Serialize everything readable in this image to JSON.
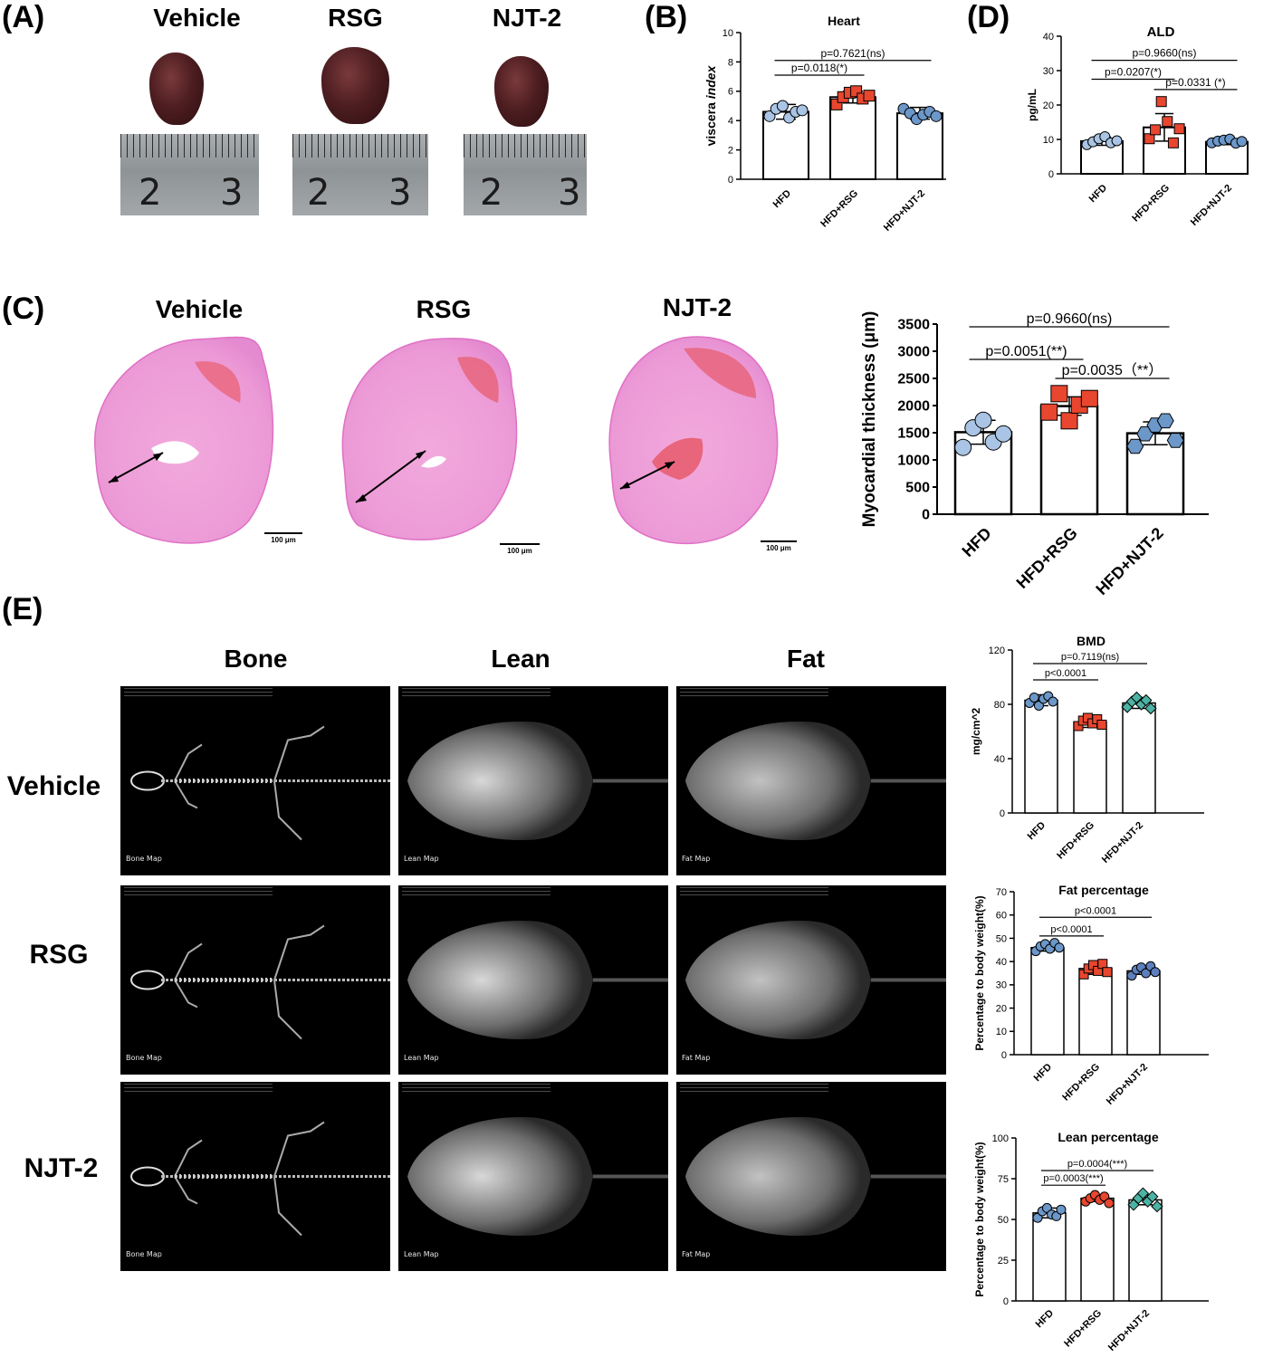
{
  "panels": {
    "A": "(A)",
    "B": "(B)",
    "C": "(C)",
    "D": "(D)",
    "E": "(E)"
  },
  "groups_photo": [
    "Vehicle",
    "RSG",
    "NJT-2"
  ],
  "ruler_numbers": [
    "2",
    "3"
  ],
  "scale_bar": "100 μm",
  "dexa_columns": [
    "Bone",
    "Lean",
    "Fat"
  ],
  "dexa_rows": [
    "Vehicle",
    "RSG",
    "NJT-2"
  ],
  "dexa_map_labels": [
    "Bone Map",
    "Lean Map",
    "Fat Map"
  ],
  "colors": {
    "hfd": "#a9c4e4",
    "rsg": "#e8462f",
    "njt": "#6c97c9",
    "teal": "#4cb3a4"
  },
  "chart_data": [
    {
      "id": "heart",
      "type": "bar",
      "title": "Heart",
      "ylabel": "viscera index",
      "ylim": [
        0,
        10
      ],
      "yticks": [
        0,
        2,
        4,
        6,
        8,
        10
      ],
      "categories": [
        "HFD",
        "HFD+RSG",
        "HFD+NJT-2"
      ],
      "values": [
        4.6,
        5.6,
        4.5
      ],
      "err": [
        0.5,
        0.4,
        0.4
      ],
      "points": [
        [
          4.3,
          4.8,
          5.0,
          4.2,
          4.6,
          4.7
        ],
        [
          5.1,
          5.6,
          5.9,
          6.0,
          5.5,
          5.7
        ],
        [
          4.8,
          4.5,
          4.1,
          4.4,
          4.6,
          4.3
        ]
      ],
      "markers": [
        "circle",
        "square",
        "circle"
      ],
      "colors": [
        "#a9c4e4",
        "#e8462f",
        "#6c97c9"
      ],
      "brackets": [
        {
          "from": 0,
          "to": 1,
          "y": 7.1,
          "text": "p=0.0118(*)"
        },
        {
          "from": 0,
          "to": 2,
          "y": 8.1,
          "text": "p=0.7621(ns)"
        }
      ]
    },
    {
      "id": "ald",
      "type": "bar",
      "title": "ALD",
      "ylabel": "pg/mL",
      "ylim": [
        0,
        40
      ],
      "yticks": [
        0,
        10,
        20,
        30,
        40
      ],
      "categories": [
        "HFD",
        "HFD+RSG",
        "HFD+NJT-2"
      ],
      "values": [
        9.5,
        13.5,
        9.3
      ],
      "err": [
        1.2,
        4.0,
        0.8
      ],
      "points": [
        [
          8.5,
          9.3,
          10.2,
          10.8,
          9.0,
          9.6
        ],
        [
          10.2,
          12.8,
          21.0,
          15.2,
          9.0,
          13.1
        ],
        [
          9.0,
          9.5,
          9.8,
          10.1,
          8.9,
          9.4
        ]
      ],
      "markers": [
        "circle",
        "square",
        "circle"
      ],
      "colors": [
        "#a9c4e4",
        "#e8462f",
        "#6c97c9"
      ],
      "brackets": [
        {
          "from": 1,
          "to": 2,
          "y": 24.5,
          "text": "p=0.0331 (*)"
        },
        {
          "from": 0,
          "to": 1,
          "y": 27.5,
          "text": "p=0.0207(*)"
        },
        {
          "from": 0,
          "to": 2,
          "y": 33.0,
          "text": "p=0.9660(ns)"
        }
      ]
    },
    {
      "id": "myo",
      "type": "bar",
      "title": "",
      "ylabel": "Myocardial thickness (μm)",
      "ylim": [
        0,
        3500
      ],
      "yticks": [
        0,
        500,
        1000,
        1500,
        2000,
        2500,
        3000,
        3500
      ],
      "categories": [
        "HFD",
        "HFD+RSG",
        "HFD+NJT-2"
      ],
      "values": [
        1510,
        1990,
        1490
      ],
      "err": [
        220,
        170,
        210
      ],
      "points": [
        [
          1230,
          1590,
          1730,
          1330,
          1480
        ],
        [
          1880,
          2220,
          1720,
          2010,
          2130
        ],
        [
          1250,
          1480,
          1640,
          1720,
          1360
        ]
      ],
      "markers": [
        "circle",
        "square",
        "hexagon"
      ],
      "colors": [
        "#a9c4e4",
        "#e8462f",
        "#6c97c9"
      ],
      "brackets": [
        {
          "from": 1,
          "to": 2,
          "y": 2500,
          "text": "p=0.0035（**）"
        },
        {
          "from": 0,
          "to": 1,
          "y": 2850,
          "text": "p=0.0051(**)"
        },
        {
          "from": 0,
          "to": 2,
          "y": 3450,
          "text": "p=0.9660(ns)"
        }
      ]
    },
    {
      "id": "bmd",
      "type": "bar",
      "title": "BMD",
      "ylabel": "mg/cm^2",
      "ylim": [
        0,
        120
      ],
      "yticks": [
        0,
        40,
        80,
        120
      ],
      "categories": [
        "HFD",
        "HFD+RSG",
        "HFD+NJT-2"
      ],
      "values": [
        83,
        67,
        81
      ],
      "err": [
        4,
        4,
        4
      ],
      "points": [
        [
          81,
          85,
          79,
          84,
          86,
          82
        ],
        [
          64,
          68,
          70,
          66,
          69,
          65
        ],
        [
          78,
          82,
          85,
          80,
          83,
          77
        ]
      ],
      "markers": [
        "circle",
        "square",
        "diamond"
      ],
      "colors": [
        "#6c97c9",
        "#e8462f",
        "#4cb3a4"
      ],
      "brackets": [
        {
          "from": 0,
          "to": 1,
          "y": 98,
          "text": "p<0.0001"
        },
        {
          "from": 0,
          "to": 2,
          "y": 110,
          "text": "p=0.7119(ns)"
        }
      ]
    },
    {
      "id": "fat",
      "type": "bar",
      "title": "Fat percentage",
      "ylabel": "Percentage to body weight(%)",
      "ylim": [
        0,
        70
      ],
      "yticks": [
        0,
        10,
        20,
        30,
        40,
        50,
        60,
        70
      ],
      "categories": [
        "HFD",
        "HFD+RSG",
        "HFD+NJT-2"
      ],
      "values": [
        46,
        37,
        36
      ],
      "err": [
        1.5,
        2.5,
        1.5
      ],
      "points": [
        [
          44.5,
          46.5,
          47.5,
          45.5,
          48,
          46
        ],
        [
          34.5,
          37,
          38.5,
          36,
          39,
          35.5
        ],
        [
          34,
          36.5,
          37.5,
          35,
          38,
          35.5
        ]
      ],
      "markers": [
        "circle",
        "square",
        "circle"
      ],
      "colors": [
        "#6c97c9",
        "#e8462f",
        "#5e7fbe"
      ],
      "brackets": [
        {
          "from": 0,
          "to": 1,
          "y": 51,
          "text": "p<0.0001"
        },
        {
          "from": 0,
          "to": 2,
          "y": 59,
          "text": "p<0.0001"
        }
      ]
    },
    {
      "id": "lean",
      "type": "bar",
      "title": "Lean percentage",
      "ylabel": "Percentage to body weight(%)",
      "ylim": [
        0,
        100
      ],
      "yticks": [
        0,
        25,
        50,
        75,
        100
      ],
      "categories": [
        "HFD",
        "HFD+RSG",
        "HFD+NJT-2"
      ],
      "values": [
        54,
        63,
        62
      ],
      "err": [
        3,
        2,
        3
      ],
      "points": [
        [
          51,
          55,
          57,
          53,
          52,
          56
        ],
        [
          61,
          63,
          65,
          62,
          64,
          60
        ],
        [
          59,
          63,
          66,
          61,
          64,
          58
        ]
      ],
      "markers": [
        "circle",
        "circle",
        "diamond"
      ],
      "colors": [
        "#6c97c9",
        "#e8462f",
        "#4cb3a4"
      ],
      "brackets": [
        {
          "from": 0,
          "to": 1,
          "y": 71,
          "text": "p=0.0003(***)"
        },
        {
          "from": 0,
          "to": 2,
          "y": 80,
          "text": "p=0.0004(***)"
        }
      ]
    }
  ]
}
